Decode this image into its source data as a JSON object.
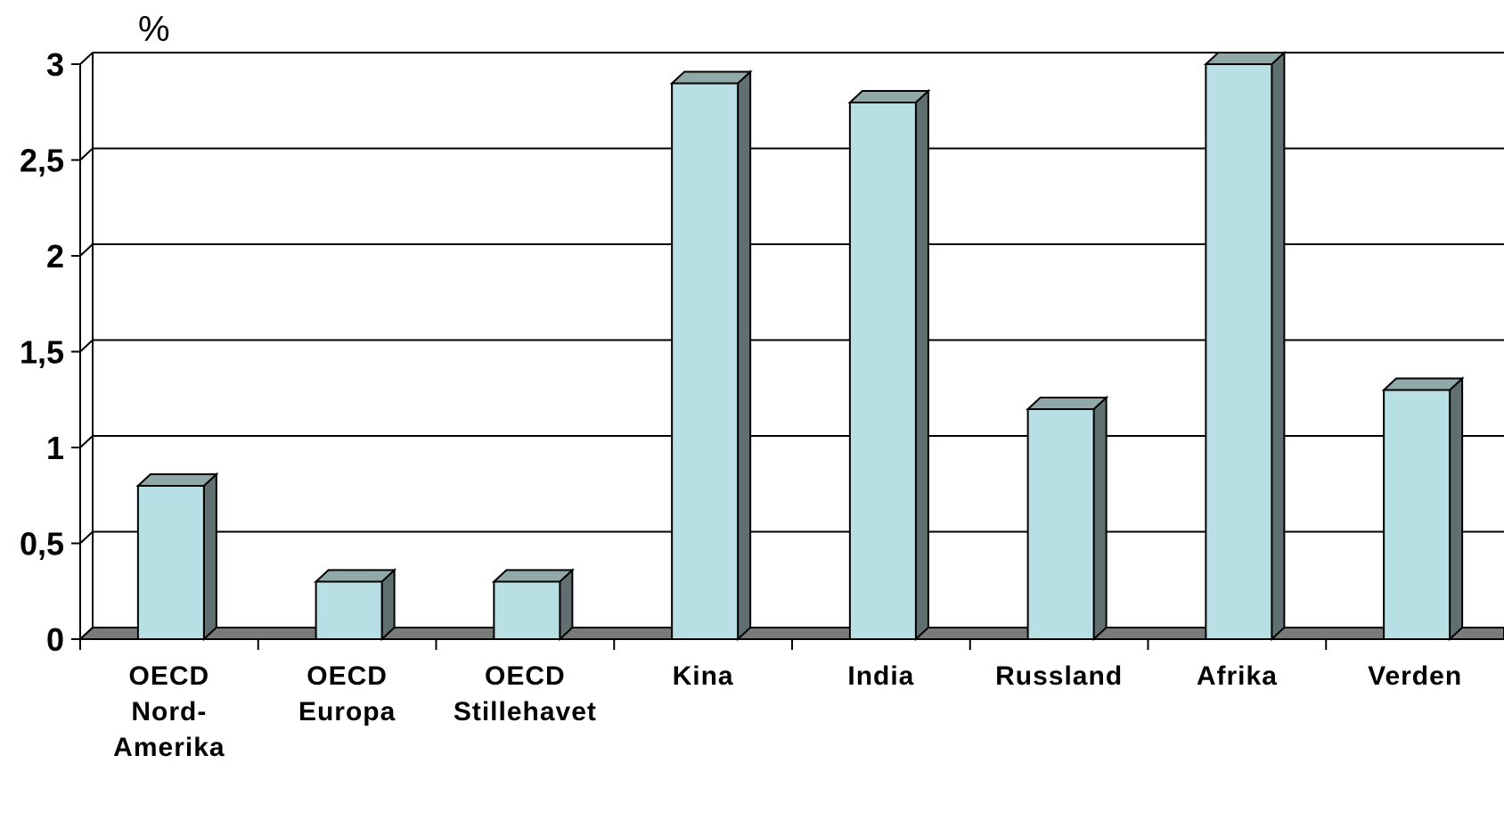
{
  "chart_data": {
    "type": "bar",
    "unit_label": "%",
    "categories": [
      [
        "OECD",
        "Nord-",
        "Amerika"
      ],
      [
        "OECD",
        "Europa"
      ],
      [
        "OECD",
        "Stillehavet"
      ],
      [
        "Kina"
      ],
      [
        "India"
      ],
      [
        "Russland"
      ],
      [
        "Afrika"
      ],
      [
        "Verden"
      ]
    ],
    "values": [
      0.8,
      0.3,
      0.3,
      2.9,
      2.8,
      1.2,
      3.0,
      1.3
    ],
    "ylim": [
      0,
      3
    ],
    "yticks": [
      "0",
      "0,5",
      "1",
      "1,5",
      "2",
      "2,5",
      "3"
    ],
    "grid": true,
    "colors": {
      "bar_front": "#b8e0e4",
      "bar_side": "#607070",
      "bar_top": "#90a8a8",
      "floor": "#7a7a7a",
      "grid": "#000000"
    }
  }
}
